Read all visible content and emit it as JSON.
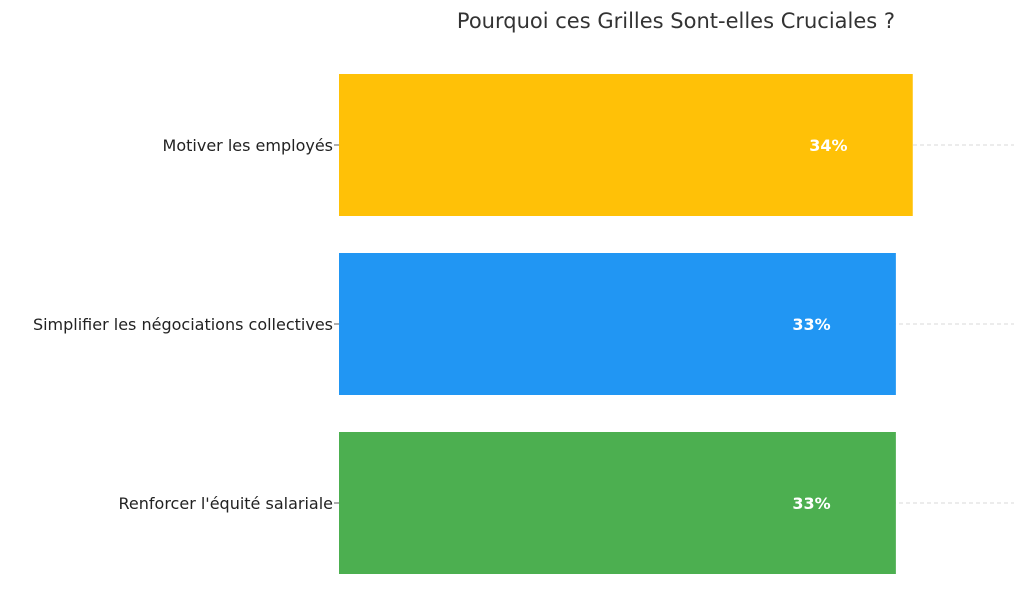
{
  "chart_data": {
    "type": "bar",
    "orientation": "horizontal",
    "title": "Pourquoi ces Grilles Sont-elles Cruciales ?",
    "categories": [
      "Motiver les employés",
      "Simplifier les négociations collectives",
      "Renforcer l'équité salariale"
    ],
    "values": [
      34,
      33,
      33
    ],
    "data_labels": [
      "34%",
      "33%",
      "33%"
    ],
    "colors": [
      "#FFC107",
      "#2196F3",
      "#4CAF50"
    ],
    "xlabel": "",
    "ylabel": "",
    "xlim": [
      0,
      40
    ],
    "grid": "horizontal dashed at category positions"
  }
}
